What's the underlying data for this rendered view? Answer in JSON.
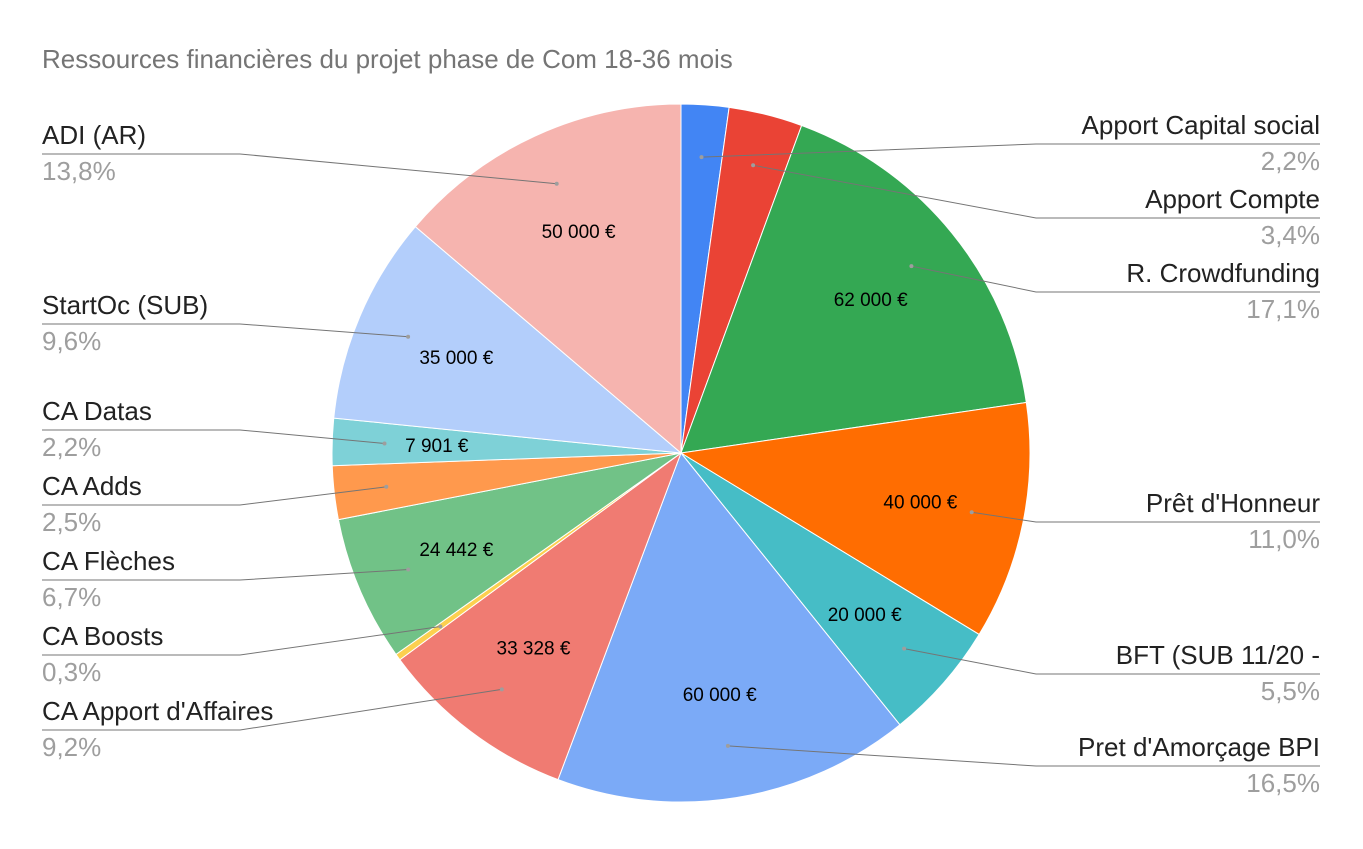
{
  "chart_data": {
    "type": "pie",
    "title": "Ressources financières du projet phase de Com 18-36 mois",
    "slices": [
      {
        "label": "Apport Capital social",
        "percent_label": "2,2%",
        "value_label": "",
        "value": 8000,
        "color": "#4285f4",
        "side": "right"
      },
      {
        "label": "Apport Compte",
        "percent_label": "3,4%",
        "value_label": "",
        "value": 12400,
        "color": "#ea4335",
        "side": "right"
      },
      {
        "label": "R. Crowdfunding",
        "percent_label": "17,1%",
        "value_label": "62 000 €",
        "value": 62000,
        "color": "#34a853",
        "side": "right"
      },
      {
        "label": "Prêt d'Honneur",
        "percent_label": "11,0%",
        "value_label": "40 000 €",
        "value": 40000,
        "color": "#ff6d01",
        "side": "right"
      },
      {
        "label": "BFT (SUB 11/20 -",
        "percent_label": "5,5%",
        "value_label": "20 000 €",
        "value": 20000,
        "color": "#46bdc6",
        "side": "right"
      },
      {
        "label": "Pret d'Amorçage BPI",
        "percent_label": "16,5%",
        "value_label": "60 000 €",
        "value": 60000,
        "color": "#7baaf7",
        "side": "right"
      },
      {
        "label": "CA Apport d'Affaires",
        "percent_label": "9,2%",
        "value_label": "33 328 €",
        "value": 33328,
        "color": "#f07b72",
        "side": "left"
      },
      {
        "label": "CA Boosts",
        "percent_label": "0,3%",
        "value_label": "",
        "value": 1100,
        "color": "#fcd04f",
        "side": "left"
      },
      {
        "label": "CA Flèches",
        "percent_label": "6,7%",
        "value_label": "24 442 €",
        "value": 24442,
        "color": "#71c287",
        "side": "left"
      },
      {
        "label": "CA Adds",
        "percent_label": "2,5%",
        "value_label": "",
        "value": 9000,
        "color": "#ff994d",
        "side": "left"
      },
      {
        "label": "CA Datas",
        "percent_label": "2,2%",
        "value_label": "7 901 €",
        "value": 7901,
        "color": "#7ed1d7",
        "side": "left"
      },
      {
        "label": "StartOc (SUB)",
        "percent_label": "9,6%",
        "value_label": "35 000 €",
        "value": 35000,
        "color": "#b3cefb",
        "side": "left"
      },
      {
        "label": "ADI (AR)",
        "percent_label": "13,8%",
        "value_label": "50 000 €",
        "value": 50000,
        "color": "#f6b4af",
        "side": "left"
      }
    ]
  }
}
